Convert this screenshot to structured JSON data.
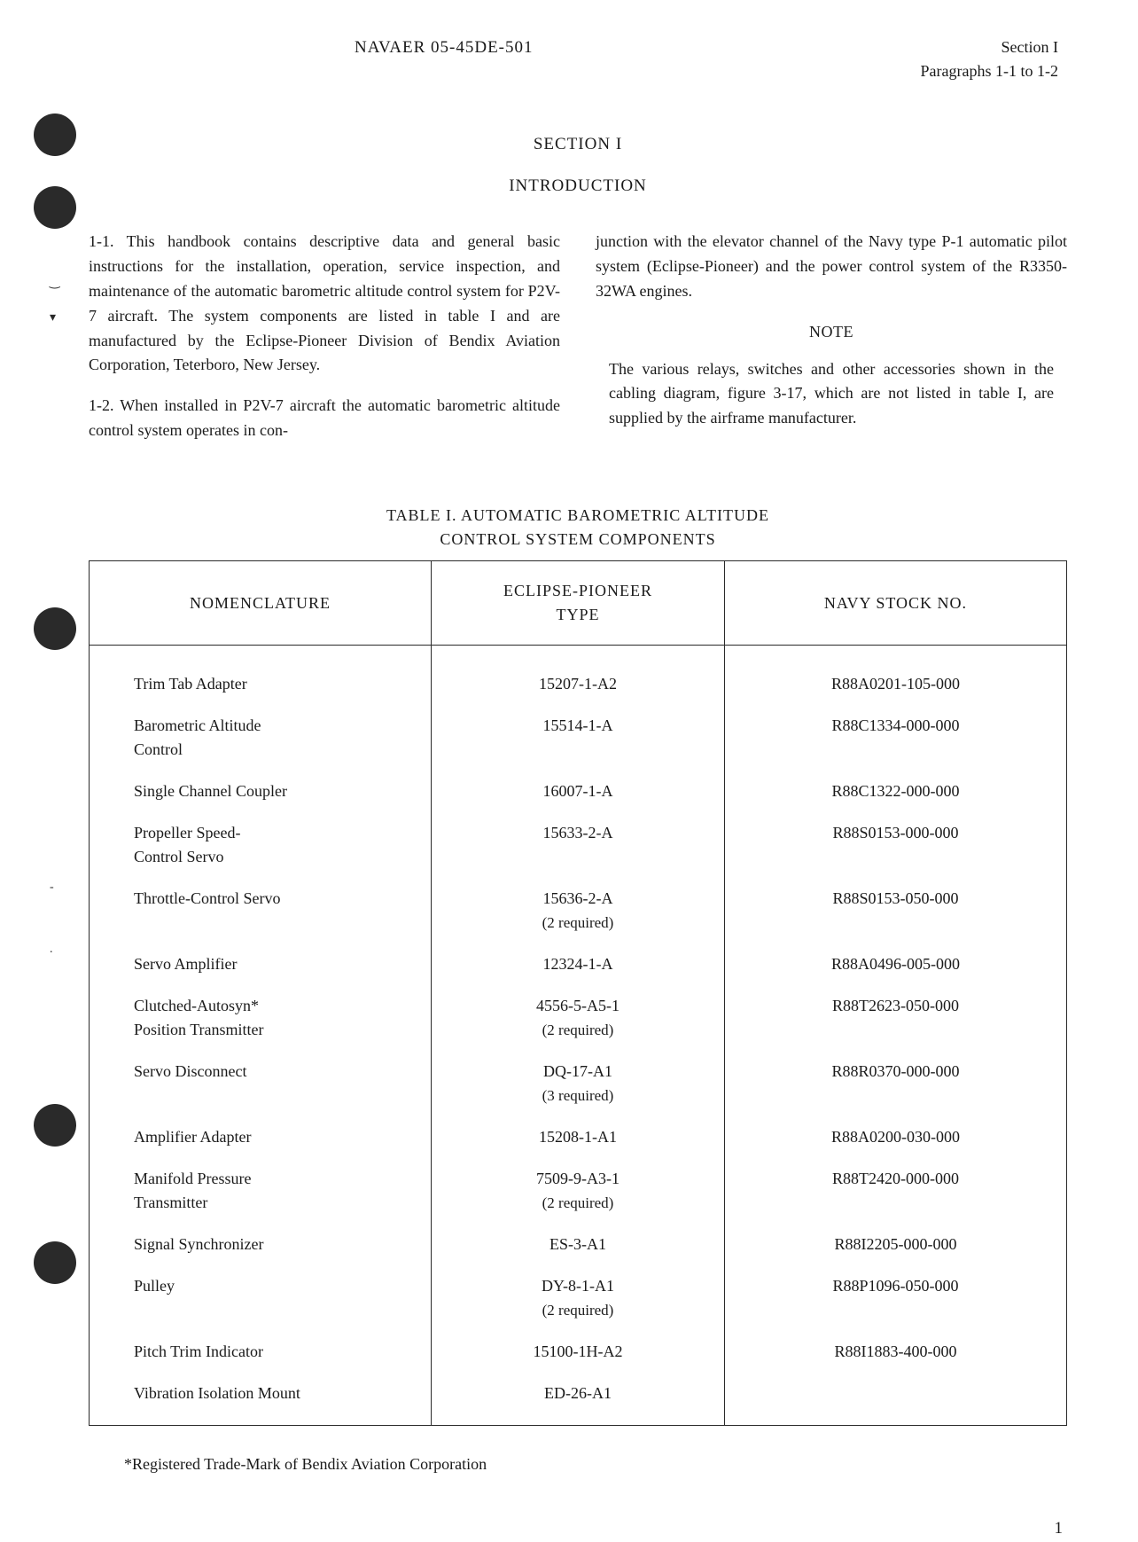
{
  "header": {
    "doc_number": "NAVAER 05-45DE-501",
    "section": "Section I",
    "paragraphs": "Paragraphs 1-1 to 1-2"
  },
  "section_heading": "SECTION I",
  "section_subheading": "INTRODUCTION",
  "paragraphs": {
    "p1_1": "1-1. This handbook contains descriptive data and general basic instructions for the installation, operation, service inspection, and maintenance of the automatic barometric altitude control system for P2V-7 aircraft. The system components are listed in table I and are manufactured by the Eclipse-Pioneer Division of Bendix Aviation Corporation, Teterboro, New Jersey.",
    "p1_2_left": "1-2. When installed in P2V-7 aircraft the automatic barometric altitude control system operates in con-",
    "p1_2_right": "junction with the elevator channel of the Navy type P-1 automatic pilot system (Eclipse-Pioneer) and the power control system of the R3350-32WA engines.",
    "note_label": "NOTE",
    "note_text": "The various relays, switches and other accessories shown in the cabling diagram, figure 3-17, which are not listed in table I, are supplied by the airframe manufacturer."
  },
  "table": {
    "title_line1": "TABLE I. AUTOMATIC BAROMETRIC ALTITUDE",
    "title_line2": "CONTROL SYSTEM COMPONENTS",
    "columns": {
      "col1": "NOMENCLATURE",
      "col2_line1": "ECLIPSE-PIONEER",
      "col2_line2": "TYPE",
      "col3": "NAVY STOCK NO."
    },
    "rows": [
      {
        "name": "Trim Tab Adapter",
        "type": "15207-1-A2",
        "stock": "R88A0201-105-000"
      },
      {
        "name": "Barometric Altitude Control",
        "type": "15514-1-A",
        "stock": "R88C1334-000-000"
      },
      {
        "name": "Single Channel Coupler",
        "type": "16007-1-A",
        "stock": "R88C1322-000-000"
      },
      {
        "name": "Propeller Speed-Control Servo",
        "type": "15633-2-A",
        "stock": "R88S0153-000-000"
      },
      {
        "name": "Throttle-Control Servo",
        "type": "15636-2-A",
        "type_sub": "(2 required)",
        "stock": "R88S0153-050-000"
      },
      {
        "name": "Servo Amplifier",
        "type": "12324-1-A",
        "stock": "R88A0496-005-000"
      },
      {
        "name": "Clutched-Autosyn* Position Transmitter",
        "type": "4556-5-A5-1",
        "type_sub": "(2 required)",
        "stock": "R88T2623-050-000"
      },
      {
        "name": "Servo Disconnect",
        "type": "DQ-17-A1",
        "type_sub": "(3 required)",
        "stock": "R88R0370-000-000"
      },
      {
        "name": "Amplifier Adapter",
        "type": "15208-1-A1",
        "stock": "R88A0200-030-000"
      },
      {
        "name": "Manifold Pressure Transmitter",
        "type": "7509-9-A3-1",
        "type_sub": "(2 required)",
        "stock": "R88T2420-000-000"
      },
      {
        "name": "Signal Synchronizer",
        "type": "ES-3-A1",
        "stock": "R88I2205-000-000"
      },
      {
        "name": "Pulley",
        "type": "DY-8-1-A1",
        "type_sub": "(2 required)",
        "stock": "R88P1096-050-000"
      },
      {
        "name": "Pitch Trim Indicator",
        "type": "15100-1H-A2",
        "stock": "R88I1883-400-000"
      },
      {
        "name": "Vibration Isolation Mount",
        "type": "ED-26-A1",
        "stock": ""
      }
    ]
  },
  "footnote": "*Registered Trade-Mark of Bendix Aviation Corporation",
  "page_number": "1"
}
